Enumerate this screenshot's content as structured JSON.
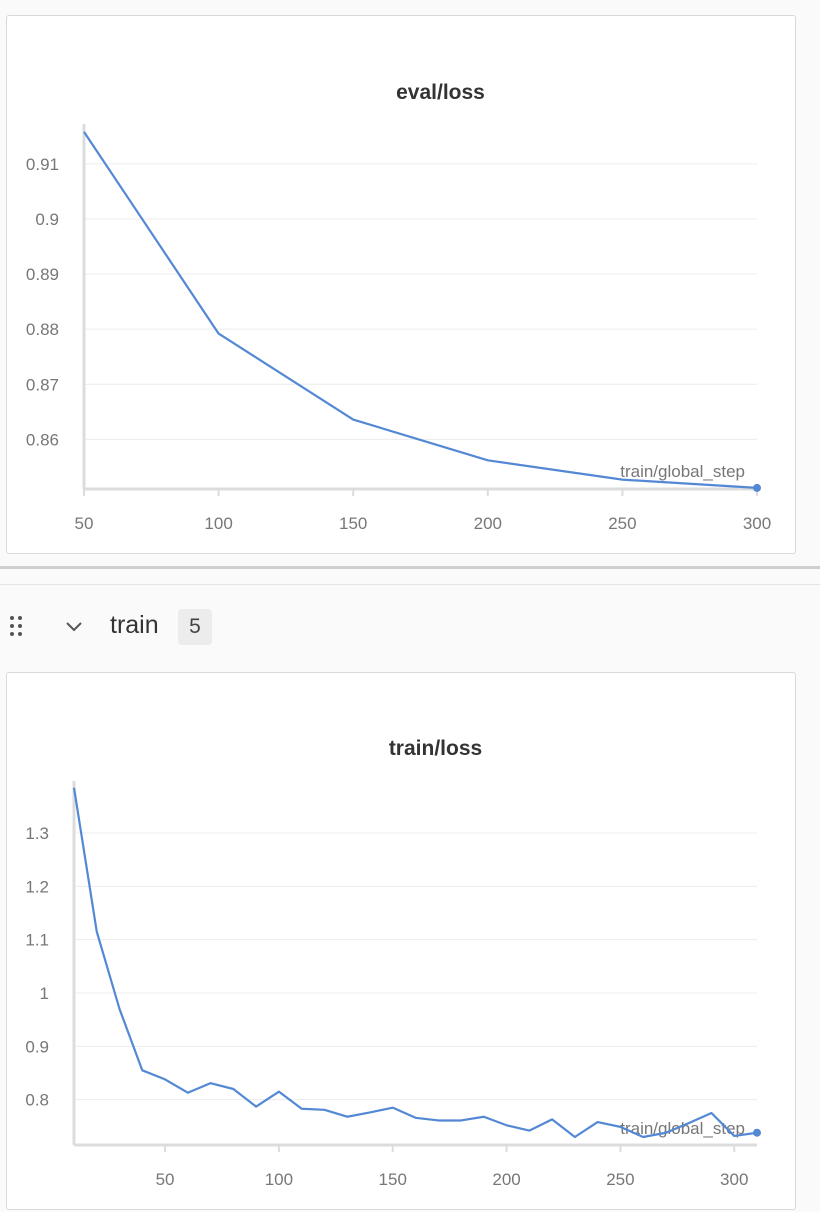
{
  "chart_data": [
    {
      "type": "line",
      "title": "eval/loss",
      "xlabel": "train/global_step",
      "ylabel": "",
      "xlim": [
        50,
        300
      ],
      "ylim": [
        0.851,
        0.9165
      ],
      "xticks": [
        50,
        100,
        150,
        200,
        250,
        300
      ],
      "yticks": [
        0.86,
        0.87,
        0.88,
        0.89,
        0.9,
        0.91
      ],
      "grid": true,
      "series": [
        {
          "x": [
            50,
            100,
            150,
            200,
            250,
            300
          ],
          "y": [
            0.9158,
            0.8792,
            0.8636,
            0.8562,
            0.8527,
            0.8512
          ]
        }
      ]
    },
    {
      "type": "line",
      "title": "train/loss",
      "xlabel": "train/global_step",
      "ylabel": "",
      "xlim": [
        10,
        310
      ],
      "ylim": [
        0.715,
        1.39
      ],
      "xticks": [
        50,
        100,
        150,
        200,
        250,
        300
      ],
      "yticks": [
        0.8,
        0.9,
        1,
        1.1,
        1.2,
        1.3
      ],
      "grid": true,
      "series": [
        {
          "x": [
            10,
            20,
            30,
            40,
            50,
            60,
            70,
            80,
            90,
            100,
            110,
            120,
            130,
            140,
            150,
            160,
            170,
            180,
            190,
            200,
            210,
            220,
            230,
            240,
            250,
            260,
            270,
            280,
            290,
            300,
            310
          ],
          "y": [
            1.385,
            1.115,
            0.97,
            0.855,
            0.838,
            0.813,
            0.831,
            0.82,
            0.787,
            0.815,
            0.783,
            0.781,
            0.768,
            0.776,
            0.785,
            0.766,
            0.761,
            0.761,
            0.768,
            0.752,
            0.742,
            0.763,
            0.73,
            0.758,
            0.749,
            0.73,
            0.738,
            0.756,
            0.775,
            0.732,
            0.738
          ]
        }
      ]
    }
  ],
  "section": {
    "title": "train",
    "count": "5"
  }
}
